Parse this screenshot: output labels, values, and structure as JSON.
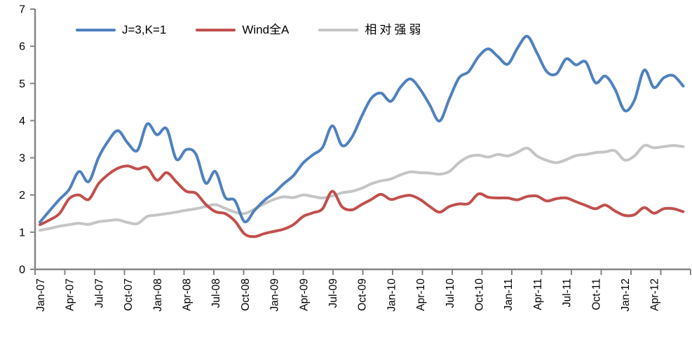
{
  "background": "#ffffff",
  "axis_color": "#848484",
  "text_color": "#000000",
  "chart_data": {
    "type": "line",
    "title": "",
    "x_start": "Jan-07",
    "x_frequency": "monthly",
    "n_points": 67,
    "x_tick_labels": [
      "Jan-07",
      "Apr-07",
      "Jul-07",
      "Oct-07",
      "Jan-08",
      "Apr-08",
      "Jul-08",
      "Oct-08",
      "Jan-09",
      "Apr-09",
      "Jul-09",
      "Oct-09",
      "Jan-10",
      "Apr-10",
      "Jul-10",
      "Oct-10",
      "Jan-11",
      "Apr-11",
      "Jul-11",
      "Oct-11",
      "Jan-12",
      "Apr-12"
    ],
    "y_ticks": [
      0,
      1,
      2,
      3,
      4,
      5,
      6,
      7
    ],
    "ylim": [
      0,
      7
    ],
    "grid": false,
    "legend_position": "top",
    "series": [
      {
        "name": "J=3,K=1",
        "color": "#4F81BD",
        "values": [
          1.27,
          1.58,
          1.88,
          2.15,
          2.63,
          2.36,
          3.0,
          3.45,
          3.73,
          3.4,
          3.2,
          3.91,
          3.62,
          3.78,
          2.96,
          3.22,
          3.1,
          2.32,
          2.63,
          1.94,
          1.85,
          1.28,
          1.58,
          1.85,
          2.05,
          2.3,
          2.52,
          2.86,
          3.08,
          3.28,
          3.86,
          3.33,
          3.55,
          4.11,
          4.6,
          4.74,
          4.52,
          4.9,
          5.12,
          4.85,
          4.42,
          3.99,
          4.58,
          5.15,
          5.32,
          5.72,
          5.93,
          5.72,
          5.52,
          5.95,
          6.27,
          5.82,
          5.32,
          5.26,
          5.66,
          5.5,
          5.58,
          5.02,
          5.2,
          4.85,
          4.27,
          4.55,
          5.36,
          4.89,
          5.15,
          5.21,
          4.93
        ]
      },
      {
        "name": "Wind全A",
        "color": "#C0504D",
        "values": [
          1.2,
          1.33,
          1.5,
          1.9,
          2.0,
          1.88,
          2.3,
          2.55,
          2.72,
          2.78,
          2.7,
          2.74,
          2.4,
          2.6,
          2.35,
          2.1,
          2.05,
          1.75,
          1.55,
          1.5,
          1.3,
          0.95,
          0.88,
          0.96,
          1.02,
          1.08,
          1.2,
          1.42,
          1.52,
          1.63,
          2.1,
          1.68,
          1.6,
          1.74,
          1.88,
          2.02,
          1.88,
          1.95,
          1.99,
          1.88,
          1.69,
          1.54,
          1.69,
          1.76,
          1.77,
          2.03,
          1.94,
          1.92,
          1.92,
          1.87,
          1.96,
          1.97,
          1.84,
          1.9,
          1.92,
          1.82,
          1.72,
          1.63,
          1.73,
          1.57,
          1.45,
          1.47,
          1.66,
          1.51,
          1.63,
          1.63,
          1.55
        ]
      },
      {
        "name": "相对强弱",
        "color": "#C5C5C5",
        "values": [
          1.05,
          1.1,
          1.16,
          1.2,
          1.24,
          1.21,
          1.28,
          1.31,
          1.33,
          1.26,
          1.23,
          1.42,
          1.46,
          1.5,
          1.54,
          1.59,
          1.63,
          1.69,
          1.74,
          1.64,
          1.54,
          1.5,
          1.62,
          1.76,
          1.88,
          1.95,
          1.93,
          2.0,
          1.96,
          1.92,
          1.97,
          2.06,
          2.1,
          2.18,
          2.3,
          2.38,
          2.43,
          2.54,
          2.62,
          2.6,
          2.59,
          2.56,
          2.63,
          2.87,
          3.03,
          3.07,
          3.02,
          3.09,
          3.05,
          3.15,
          3.26,
          3.05,
          2.93,
          2.87,
          2.95,
          3.06,
          3.09,
          3.14,
          3.16,
          3.19,
          2.94,
          3.05,
          3.33,
          3.27,
          3.3,
          3.33,
          3.3
        ]
      }
    ]
  }
}
